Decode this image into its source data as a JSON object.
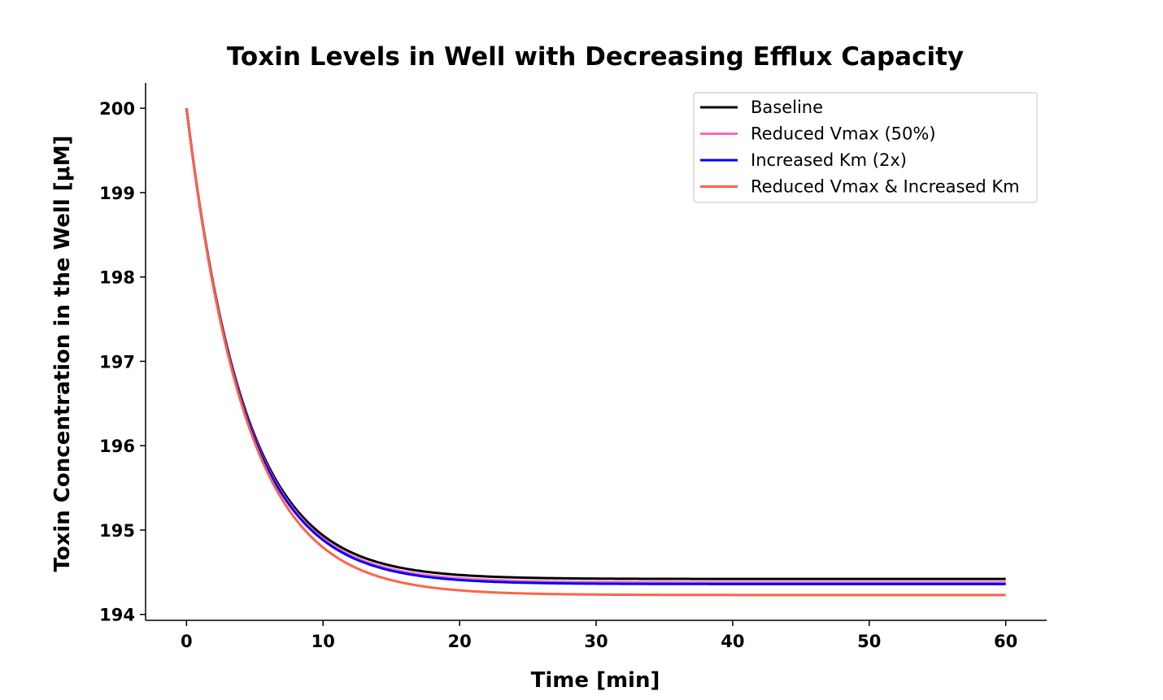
{
  "chart_data": {
    "type": "line",
    "title": "Toxin Levels in Well with Decreasing Efflux Capacity",
    "xlabel": "Time [min]",
    "ylabel": "Toxin Concentration in the Well [μM]",
    "xlim": [
      -3,
      63
    ],
    "ylim": [
      193.93,
      200.3
    ],
    "xticks": [
      0,
      10,
      20,
      30,
      40,
      50,
      60
    ],
    "yticks": [
      194,
      195,
      196,
      197,
      198,
      199,
      200
    ],
    "grid": false,
    "legend_position": "top-right",
    "series": [
      {
        "name": "Baseline",
        "color": "#000000",
        "initial": 200,
        "steady": 194.42,
        "tau": 4.2
      },
      {
        "name": "Reduced Vmax (50%)",
        "color": "#ff69b4",
        "initial": 200,
        "steady": 194.38,
        "tau": 4.2
      },
      {
        "name": "Increased Km (2x)",
        "color": "#0000ff",
        "initial": 200,
        "steady": 194.36,
        "tau": 4.2
      },
      {
        "name": "Reduced Vmax & Increased Km",
        "color": "#ff6347",
        "initial": 200,
        "steady": 194.23,
        "tau": 4.3
      }
    ]
  }
}
